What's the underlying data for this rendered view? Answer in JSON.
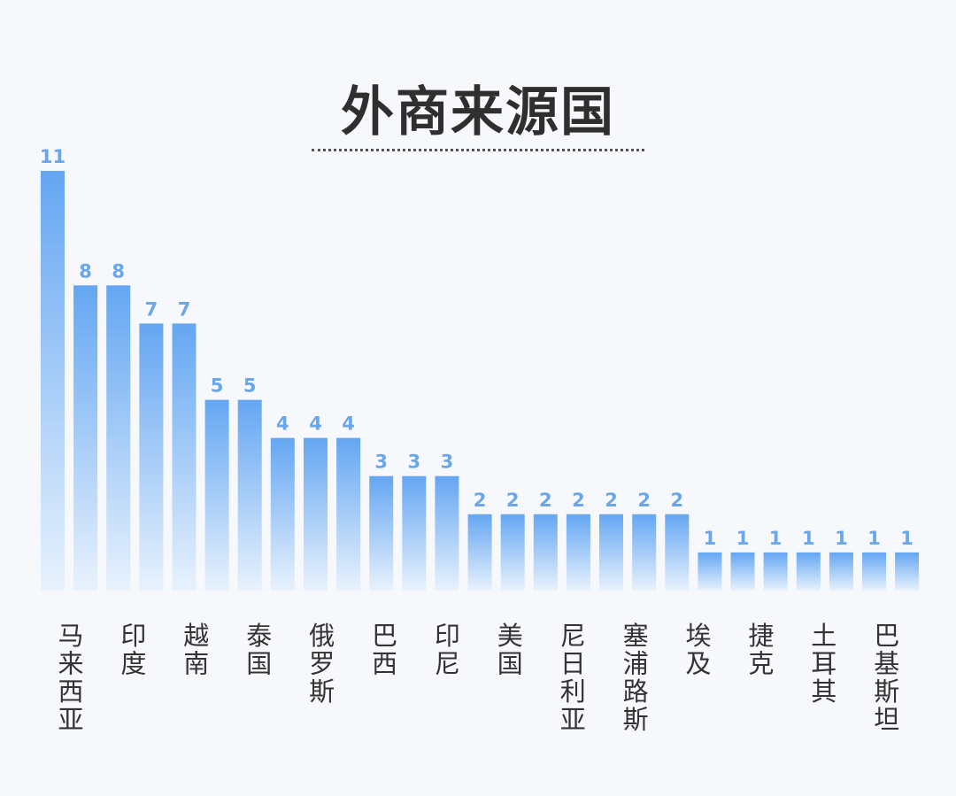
{
  "chart_data": {
    "type": "bar",
    "title": "外商来源国",
    "xlabel": "",
    "ylabel": "",
    "ylim": [
      0,
      12.3
    ],
    "grid": false,
    "bar_color_top": "#64a6f2",
    "bar_color_bottom": "#e8f2fd",
    "value_label_color": "#6aa7ea",
    "bars": [
      11,
      8,
      8,
      7,
      7,
      5,
      5,
      4,
      4,
      4,
      3,
      3,
      3,
      2,
      2,
      2,
      2,
      2,
      2,
      2,
      1,
      1,
      1,
      1,
      1,
      1,
      1
    ],
    "category_labels": [
      "马来西亚",
      "印度",
      "越南",
      "泰国",
      "俄罗斯",
      "巴西",
      "印尼",
      "美国",
      "尼日利亚",
      "塞浦路斯",
      "埃及",
      "捷克",
      "土耳其",
      "巴基斯坦"
    ]
  }
}
